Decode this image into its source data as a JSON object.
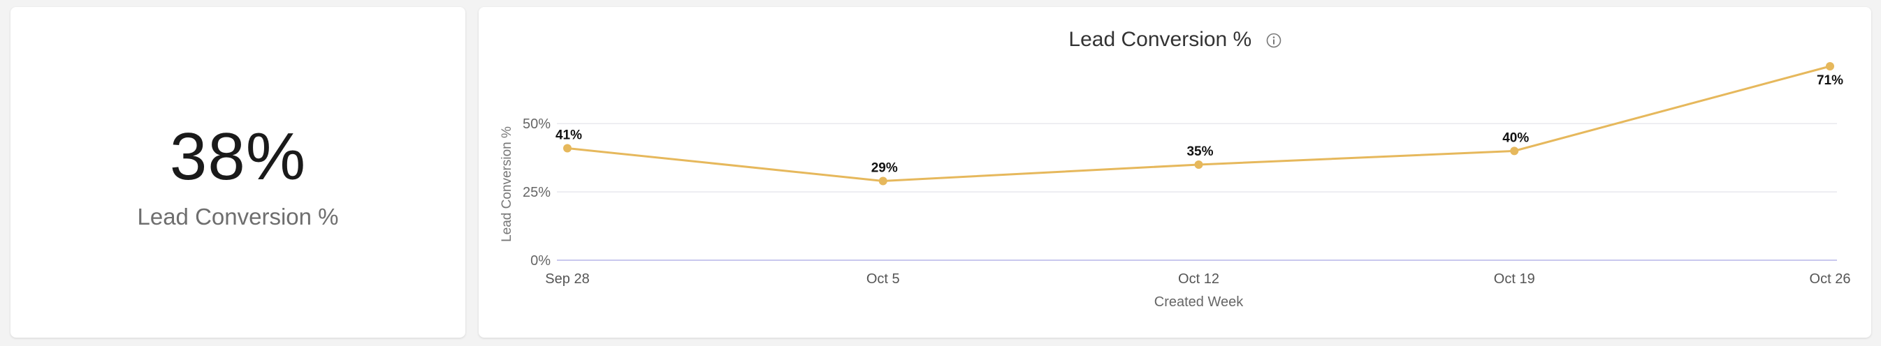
{
  "kpi": {
    "value": "38%",
    "label": "Lead Conversion %"
  },
  "chart_header": {
    "title": "Lead Conversion %",
    "info_icon": "info-icon"
  },
  "colors": {
    "line": "#e6b85c",
    "grid": "#e8e8ee",
    "baseline": "#c9c8ee"
  },
  "chart_data": {
    "type": "line",
    "title": "Lead Conversion %",
    "xlabel": "Created Week",
    "ylabel": "Lead Conversion %",
    "categories": [
      "Sep 28",
      "Oct 5",
      "Oct 12",
      "Oct 19",
      "Oct 26"
    ],
    "series": [
      {
        "values": [
          41,
          29,
          35,
          40,
          71
        ]
      }
    ],
    "data_labels": [
      "41%",
      "29%",
      "35%",
      "40%",
      "71%"
    ],
    "yticks": [
      "0%",
      "25%",
      "50%"
    ],
    "ytick_values": [
      0,
      25,
      50
    ],
    "ylim": [
      0,
      71
    ],
    "grid": true
  }
}
